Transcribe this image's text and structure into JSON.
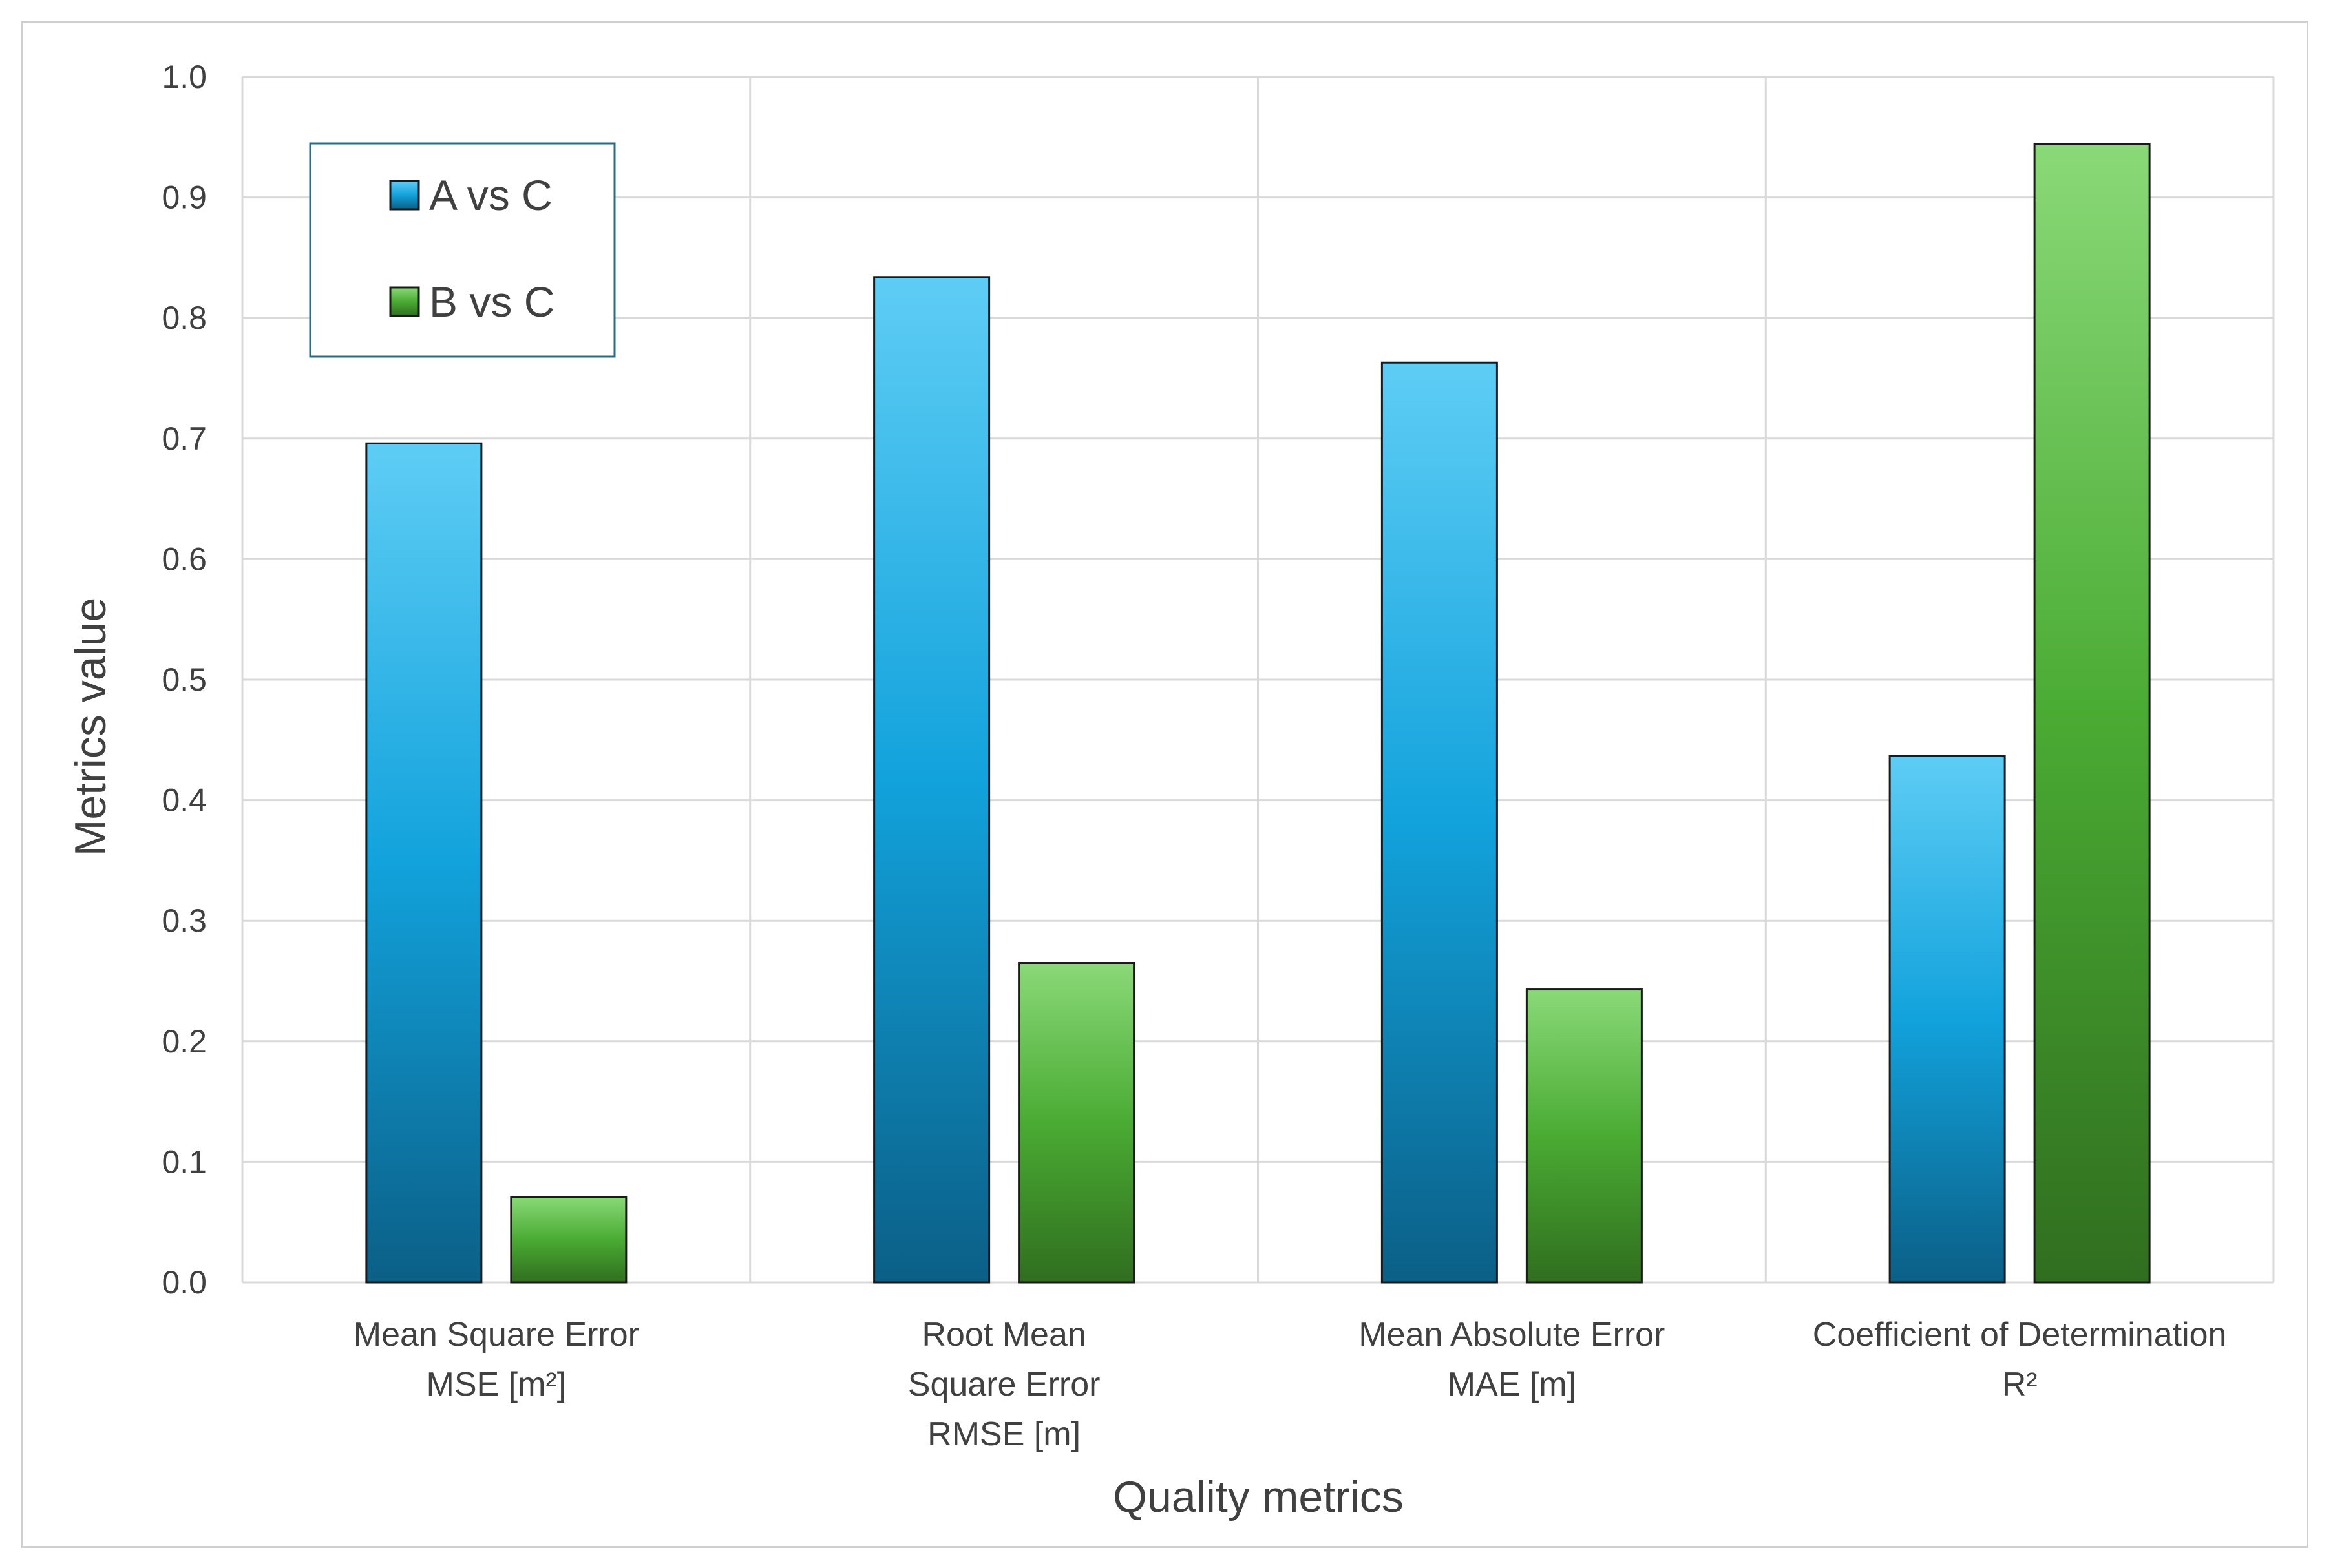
{
  "chart_data": {
    "type": "bar",
    "title": "",
    "xlabel": "Quality metrics",
    "ylabel": "Metrics value",
    "ylim": [
      0,
      1.0
    ],
    "yticks": [
      "0.0",
      "0.1",
      "0.2",
      "0.3",
      "0.4",
      "0.5",
      "0.6",
      "0.7",
      "0.8",
      "0.9",
      "1.0"
    ],
    "grid": true,
    "legend_position": "top-left",
    "categories": [
      {
        "lines": [
          "Mean Square Error",
          "MSE [m²]"
        ]
      },
      {
        "lines": [
          "Root Mean",
          "Square Error",
          "RMSE [m]"
        ]
      },
      {
        "lines": [
          "Mean Absolute Error",
          "MAE [m]"
        ]
      },
      {
        "lines": [
          "Coefficient of Determination",
          "R²"
        ]
      }
    ],
    "series": [
      {
        "name": "A vs C",
        "color_top": "#5ecdf5",
        "color_mid": "#12a2dc",
        "color_bottom": "#0b5f86",
        "values": [
          0.696,
          0.834,
          0.763,
          0.437
        ]
      },
      {
        "name": "B vs C",
        "color_top": "#8ad978",
        "color_mid": "#4aab33",
        "color_bottom": "#306e1f",
        "values": [
          0.071,
          0.265,
          0.243,
          0.944
        ]
      }
    ]
  }
}
